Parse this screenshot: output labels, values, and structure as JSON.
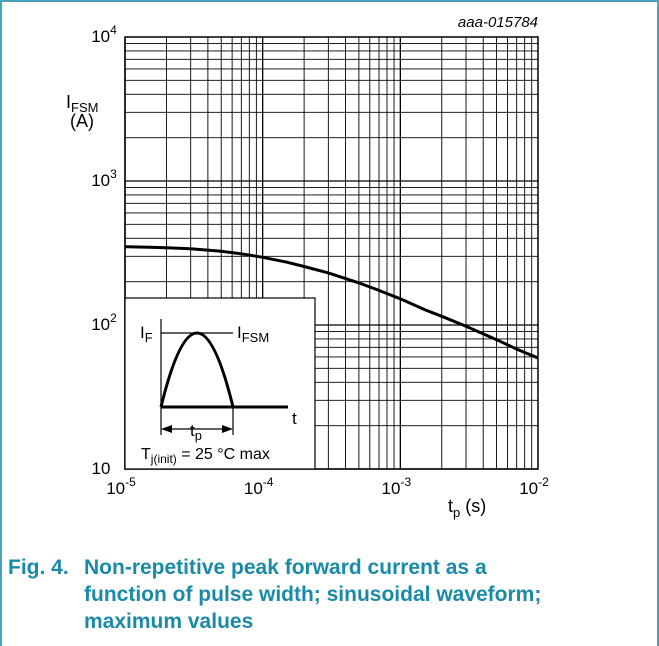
{
  "colors": {
    "frame": "#4aa3b8",
    "caption": "#1a8aa8",
    "grid": "#000000",
    "curve": "#000000",
    "background": "#ffffff"
  },
  "figure": {
    "id": "aaa-015784",
    "caption_number": "Fig. 4.",
    "caption_lines": [
      "Non-repetitive peak forward current as a",
      "function of pulse width; sinusoidal waveform;",
      "maximum values"
    ]
  },
  "chart_data": {
    "type": "line",
    "xscale": "log",
    "yscale": "log",
    "xlim": [
      1e-05,
      0.01
    ],
    "ylim": [
      10,
      10000
    ],
    "grid": true,
    "xlabel": {
      "main": "t",
      "sub": "p",
      "unit": " (s)"
    },
    "ylabel": {
      "main": "I",
      "sub": "FSM",
      "unit": "(A)"
    },
    "x_ticks": [
      {
        "base": "10",
        "exp": "-5"
      },
      {
        "base": "10",
        "exp": "-4"
      },
      {
        "base": "10",
        "exp": "-3"
      },
      {
        "base": "10",
        "exp": "-2"
      }
    ],
    "y_ticks": [
      {
        "base": "10",
        "exp": ""
      },
      {
        "base": "10",
        "exp": "2"
      },
      {
        "base": "10",
        "exp": "3"
      },
      {
        "base": "10",
        "exp": "4"
      }
    ],
    "series": [
      {
        "x": [
          1e-05,
          1.5e-05,
          2e-05,
          3e-05,
          5e-05,
          7e-05,
          0.0001,
          0.00015,
          0.0002,
          0.0003,
          0.0005,
          0.0007,
          0.001,
          0.0015,
          0.002,
          0.003,
          0.005,
          0.007,
          0.01
        ],
        "y": [
          350,
          347,
          344,
          338,
          325,
          312,
          295,
          273,
          255,
          230,
          196,
          174,
          152,
          128,
          115,
          98,
          79,
          68,
          59
        ]
      }
    ],
    "inset": {
      "y_label": {
        "main": "I",
        "sub": "F"
      },
      "level_label": {
        "main": "I",
        "sub": "FSM"
      },
      "time_label": "t",
      "pulse_label": {
        "main": "t",
        "sub": "p"
      },
      "condition": {
        "main": "T",
        "sub": "j(init)",
        "rest": " = 25 °C max"
      }
    }
  }
}
